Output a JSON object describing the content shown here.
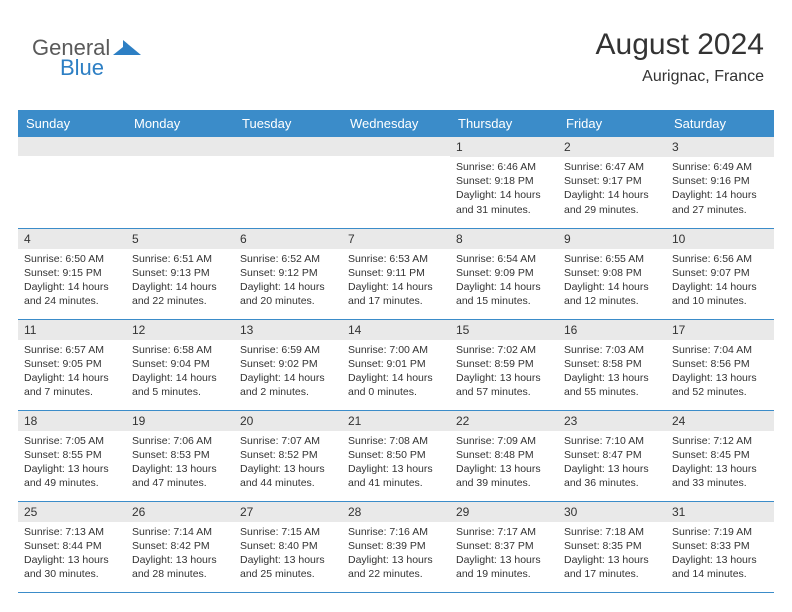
{
  "logo": {
    "general": "General",
    "blue": "Blue",
    "general_color": "#5a5a5a",
    "blue_color": "#2d7fc4"
  },
  "header": {
    "title": "August 2024",
    "location": "Aurignac, France"
  },
  "colors": {
    "header_bg": "#3b8cc9",
    "header_text": "#ffffff",
    "band": "#e9e9e9",
    "text": "#333333",
    "page_bg": "#ffffff"
  },
  "typography": {
    "title_fontsize": 30,
    "location_fontsize": 16,
    "dayheader_fontsize": 13,
    "daynum_fontsize": 12,
    "daytext_fontsize": 10.5
  },
  "day_headers": [
    "Sunday",
    "Monday",
    "Tuesday",
    "Wednesday",
    "Thursday",
    "Friday",
    "Saturday"
  ],
  "weeks": [
    [
      null,
      null,
      null,
      null,
      {
        "n": "1",
        "sr": "6:46 AM",
        "ss": "9:18 PM",
        "dl": "14 hours and 31 minutes."
      },
      {
        "n": "2",
        "sr": "6:47 AM",
        "ss": "9:17 PM",
        "dl": "14 hours and 29 minutes."
      },
      {
        "n": "3",
        "sr": "6:49 AM",
        "ss": "9:16 PM",
        "dl": "14 hours and 27 minutes."
      }
    ],
    [
      {
        "n": "4",
        "sr": "6:50 AM",
        "ss": "9:15 PM",
        "dl": "14 hours and 24 minutes."
      },
      {
        "n": "5",
        "sr": "6:51 AM",
        "ss": "9:13 PM",
        "dl": "14 hours and 22 minutes."
      },
      {
        "n": "6",
        "sr": "6:52 AM",
        "ss": "9:12 PM",
        "dl": "14 hours and 20 minutes."
      },
      {
        "n": "7",
        "sr": "6:53 AM",
        "ss": "9:11 PM",
        "dl": "14 hours and 17 minutes."
      },
      {
        "n": "8",
        "sr": "6:54 AM",
        "ss": "9:09 PM",
        "dl": "14 hours and 15 minutes."
      },
      {
        "n": "9",
        "sr": "6:55 AM",
        "ss": "9:08 PM",
        "dl": "14 hours and 12 minutes."
      },
      {
        "n": "10",
        "sr": "6:56 AM",
        "ss": "9:07 PM",
        "dl": "14 hours and 10 minutes."
      }
    ],
    [
      {
        "n": "11",
        "sr": "6:57 AM",
        "ss": "9:05 PM",
        "dl": "14 hours and 7 minutes."
      },
      {
        "n": "12",
        "sr": "6:58 AM",
        "ss": "9:04 PM",
        "dl": "14 hours and 5 minutes."
      },
      {
        "n": "13",
        "sr": "6:59 AM",
        "ss": "9:02 PM",
        "dl": "14 hours and 2 minutes."
      },
      {
        "n": "14",
        "sr": "7:00 AM",
        "ss": "9:01 PM",
        "dl": "14 hours and 0 minutes."
      },
      {
        "n": "15",
        "sr": "7:02 AM",
        "ss": "8:59 PM",
        "dl": "13 hours and 57 minutes."
      },
      {
        "n": "16",
        "sr": "7:03 AM",
        "ss": "8:58 PM",
        "dl": "13 hours and 55 minutes."
      },
      {
        "n": "17",
        "sr": "7:04 AM",
        "ss": "8:56 PM",
        "dl": "13 hours and 52 minutes."
      }
    ],
    [
      {
        "n": "18",
        "sr": "7:05 AM",
        "ss": "8:55 PM",
        "dl": "13 hours and 49 minutes."
      },
      {
        "n": "19",
        "sr": "7:06 AM",
        "ss": "8:53 PM",
        "dl": "13 hours and 47 minutes."
      },
      {
        "n": "20",
        "sr": "7:07 AM",
        "ss": "8:52 PM",
        "dl": "13 hours and 44 minutes."
      },
      {
        "n": "21",
        "sr": "7:08 AM",
        "ss": "8:50 PM",
        "dl": "13 hours and 41 minutes."
      },
      {
        "n": "22",
        "sr": "7:09 AM",
        "ss": "8:48 PM",
        "dl": "13 hours and 39 minutes."
      },
      {
        "n": "23",
        "sr": "7:10 AM",
        "ss": "8:47 PM",
        "dl": "13 hours and 36 minutes."
      },
      {
        "n": "24",
        "sr": "7:12 AM",
        "ss": "8:45 PM",
        "dl": "13 hours and 33 minutes."
      }
    ],
    [
      {
        "n": "25",
        "sr": "7:13 AM",
        "ss": "8:44 PM",
        "dl": "13 hours and 30 minutes."
      },
      {
        "n": "26",
        "sr": "7:14 AM",
        "ss": "8:42 PM",
        "dl": "13 hours and 28 minutes."
      },
      {
        "n": "27",
        "sr": "7:15 AM",
        "ss": "8:40 PM",
        "dl": "13 hours and 25 minutes."
      },
      {
        "n": "28",
        "sr": "7:16 AM",
        "ss": "8:39 PM",
        "dl": "13 hours and 22 minutes."
      },
      {
        "n": "29",
        "sr": "7:17 AM",
        "ss": "8:37 PM",
        "dl": "13 hours and 19 minutes."
      },
      {
        "n": "30",
        "sr": "7:18 AM",
        "ss": "8:35 PM",
        "dl": "13 hours and 17 minutes."
      },
      {
        "n": "31",
        "sr": "7:19 AM",
        "ss": "8:33 PM",
        "dl": "13 hours and 14 minutes."
      }
    ]
  ]
}
